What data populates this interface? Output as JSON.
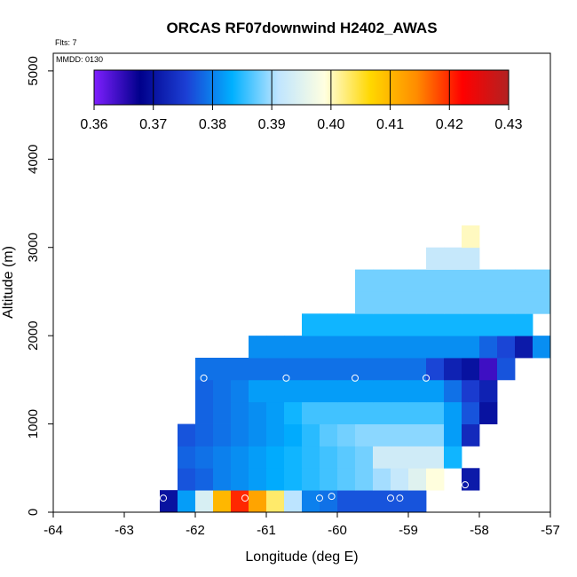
{
  "chart_data": {
    "type": "heatmap",
    "title": "ORCAS RF07downwind H2402_AWAS",
    "flights_label": "Flts: 7",
    "date_label": "MMDD: 0130",
    "xlabel": "Longitude (deg E)",
    "ylabel": "Altitude (m)",
    "xlim": [
      -64,
      -57
    ],
    "ylim": [
      0,
      5200
    ],
    "x_ticks": [
      -64,
      -63,
      -62,
      -61,
      -60,
      -59,
      -58,
      -57
    ],
    "x_tick_labels": [
      "-64",
      "-63",
      "-62",
      "-61",
      "-60",
      "-59",
      "-58",
      "-57"
    ],
    "y_ticks": [
      0,
      1000,
      2000,
      3000,
      4000,
      5000
    ],
    "y_tick_labels": [
      "0",
      "1000",
      "2000",
      "3000",
      "4000",
      "5000"
    ],
    "colorbar": {
      "range": [
        0.36,
        0.43
      ],
      "ticks": [
        0.36,
        0.37,
        0.38,
        0.39,
        0.4,
        0.41,
        0.42,
        0.43
      ],
      "tick_labels": [
        "0.36",
        "0.37",
        "0.38",
        "0.39",
        "0.40",
        "0.41",
        "0.42",
        "0.43"
      ],
      "stops": [
        "#7f1fff",
        "#00008b",
        "#1c3fd4",
        "#00b0ff",
        "#bfe5ff",
        "#ffffe0",
        "#ffd700",
        "#ff8c00",
        "#ff0000",
        "#b22222"
      ]
    },
    "cell_size": {
      "dlon": 0.25,
      "dalt": 250
    },
    "rows": [
      {
        "alt0": 0,
        "lon0": -62.5,
        "values": [
          0.37,
          0.382,
          0.394,
          0.41,
          0.42,
          0.412,
          0.403,
          0.391,
          0.38,
          0.379,
          0.377,
          0.377,
          0.377,
          0.377,
          0.377
        ]
      },
      {
        "alt0": 250,
        "lon0": -62.25,
        "values": [
          0.377,
          0.378,
          0.38,
          0.381,
          0.382,
          0.383,
          0.384,
          0.385,
          0.386,
          0.387,
          0.388,
          0.39,
          0.392,
          0.395,
          0.399,
          null,
          0.371
        ]
      },
      {
        "alt0": 500,
        "lon0": -62.25,
        "values": [
          0.378,
          0.379,
          0.38,
          0.381,
          0.382,
          0.383,
          0.384,
          0.385,
          0.386,
          0.387,
          0.388,
          0.393,
          0.393,
          0.393,
          0.393,
          0.384
        ]
      },
      {
        "alt0": 750,
        "lon0": -62.25,
        "values": [
          0.377,
          0.378,
          0.379,
          0.38,
          0.381,
          0.382,
          0.383,
          0.385,
          0.387,
          0.388,
          0.389,
          0.389,
          0.389,
          0.389,
          0.389,
          0.382,
          0.373
        ]
      },
      {
        "alt0": 1000,
        "lon0": -62.0,
        "values": [
          0.378,
          0.379,
          0.38,
          0.381,
          0.382,
          0.384,
          0.386,
          0.386,
          0.386,
          0.386,
          0.386,
          0.386,
          0.386,
          0.386,
          0.382,
          0.377,
          0.37
        ]
      },
      {
        "alt0": 1250,
        "lon0": -62.0,
        "values": [
          0.378,
          0.379,
          0.38,
          0.382,
          0.382,
          0.382,
          0.382,
          0.382,
          0.382,
          0.382,
          0.382,
          0.382,
          0.382,
          0.382,
          0.379,
          0.375,
          0.372
        ]
      },
      {
        "alt0": 1500,
        "lon0": -62.0,
        "values": [
          0.379,
          0.379,
          0.379,
          0.379,
          0.379,
          0.379,
          0.379,
          0.379,
          0.379,
          0.379,
          0.379,
          0.379,
          0.379,
          0.376,
          0.372,
          0.37,
          0.364,
          0.377
        ]
      },
      {
        "alt0": 1750,
        "lon0": -61.25,
        "values": [
          0.381,
          0.381,
          0.381,
          0.381,
          0.381,
          0.381,
          0.381,
          0.381,
          0.381,
          0.381,
          0.381,
          0.381,
          0.381,
          0.378,
          0.376,
          0.371,
          0.381
        ]
      },
      {
        "alt0": 2000,
        "lon0": -60.5,
        "values": [
          0.384,
          0.384,
          0.384,
          0.384,
          0.384,
          0.384,
          0.384,
          0.384,
          0.384,
          0.384,
          0.384,
          0.384,
          0.384
        ]
      },
      {
        "alt0": 2250,
        "lon0": -59.75,
        "values": [
          0.388,
          0.388,
          0.388,
          0.388,
          0.388,
          0.388,
          0.388,
          0.388,
          0.388,
          0.388,
          0.388
        ]
      },
      {
        "alt0": 2500,
        "lon0": -59.75,
        "values": [
          0.388,
          0.388,
          0.388,
          0.388,
          0.388,
          0.388,
          0.388,
          0.388,
          0.388,
          0.388,
          0.388
        ]
      },
      {
        "alt0": 2750,
        "lon0": -58.75,
        "values": [
          0.392,
          0.392,
          0.392
        ]
      },
      {
        "alt0": 3000,
        "lon0": -58.25,
        "values": [
          0.4
        ]
      }
    ],
    "sample_points": [
      {
        "lon": -62.45,
        "alt": 160
      },
      {
        "lon": -61.3,
        "alt": 160
      },
      {
        "lon": -60.25,
        "alt": 160
      },
      {
        "lon": -60.08,
        "alt": 180
      },
      {
        "lon": -59.25,
        "alt": 160
      },
      {
        "lon": -59.12,
        "alt": 160
      },
      {
        "lon": -58.2,
        "alt": 310
      },
      {
        "lon": -61.88,
        "alt": 1520
      },
      {
        "lon": -60.72,
        "alt": 1520
      },
      {
        "lon": -59.75,
        "alt": 1520
      },
      {
        "lon": -58.75,
        "alt": 1520
      }
    ]
  }
}
